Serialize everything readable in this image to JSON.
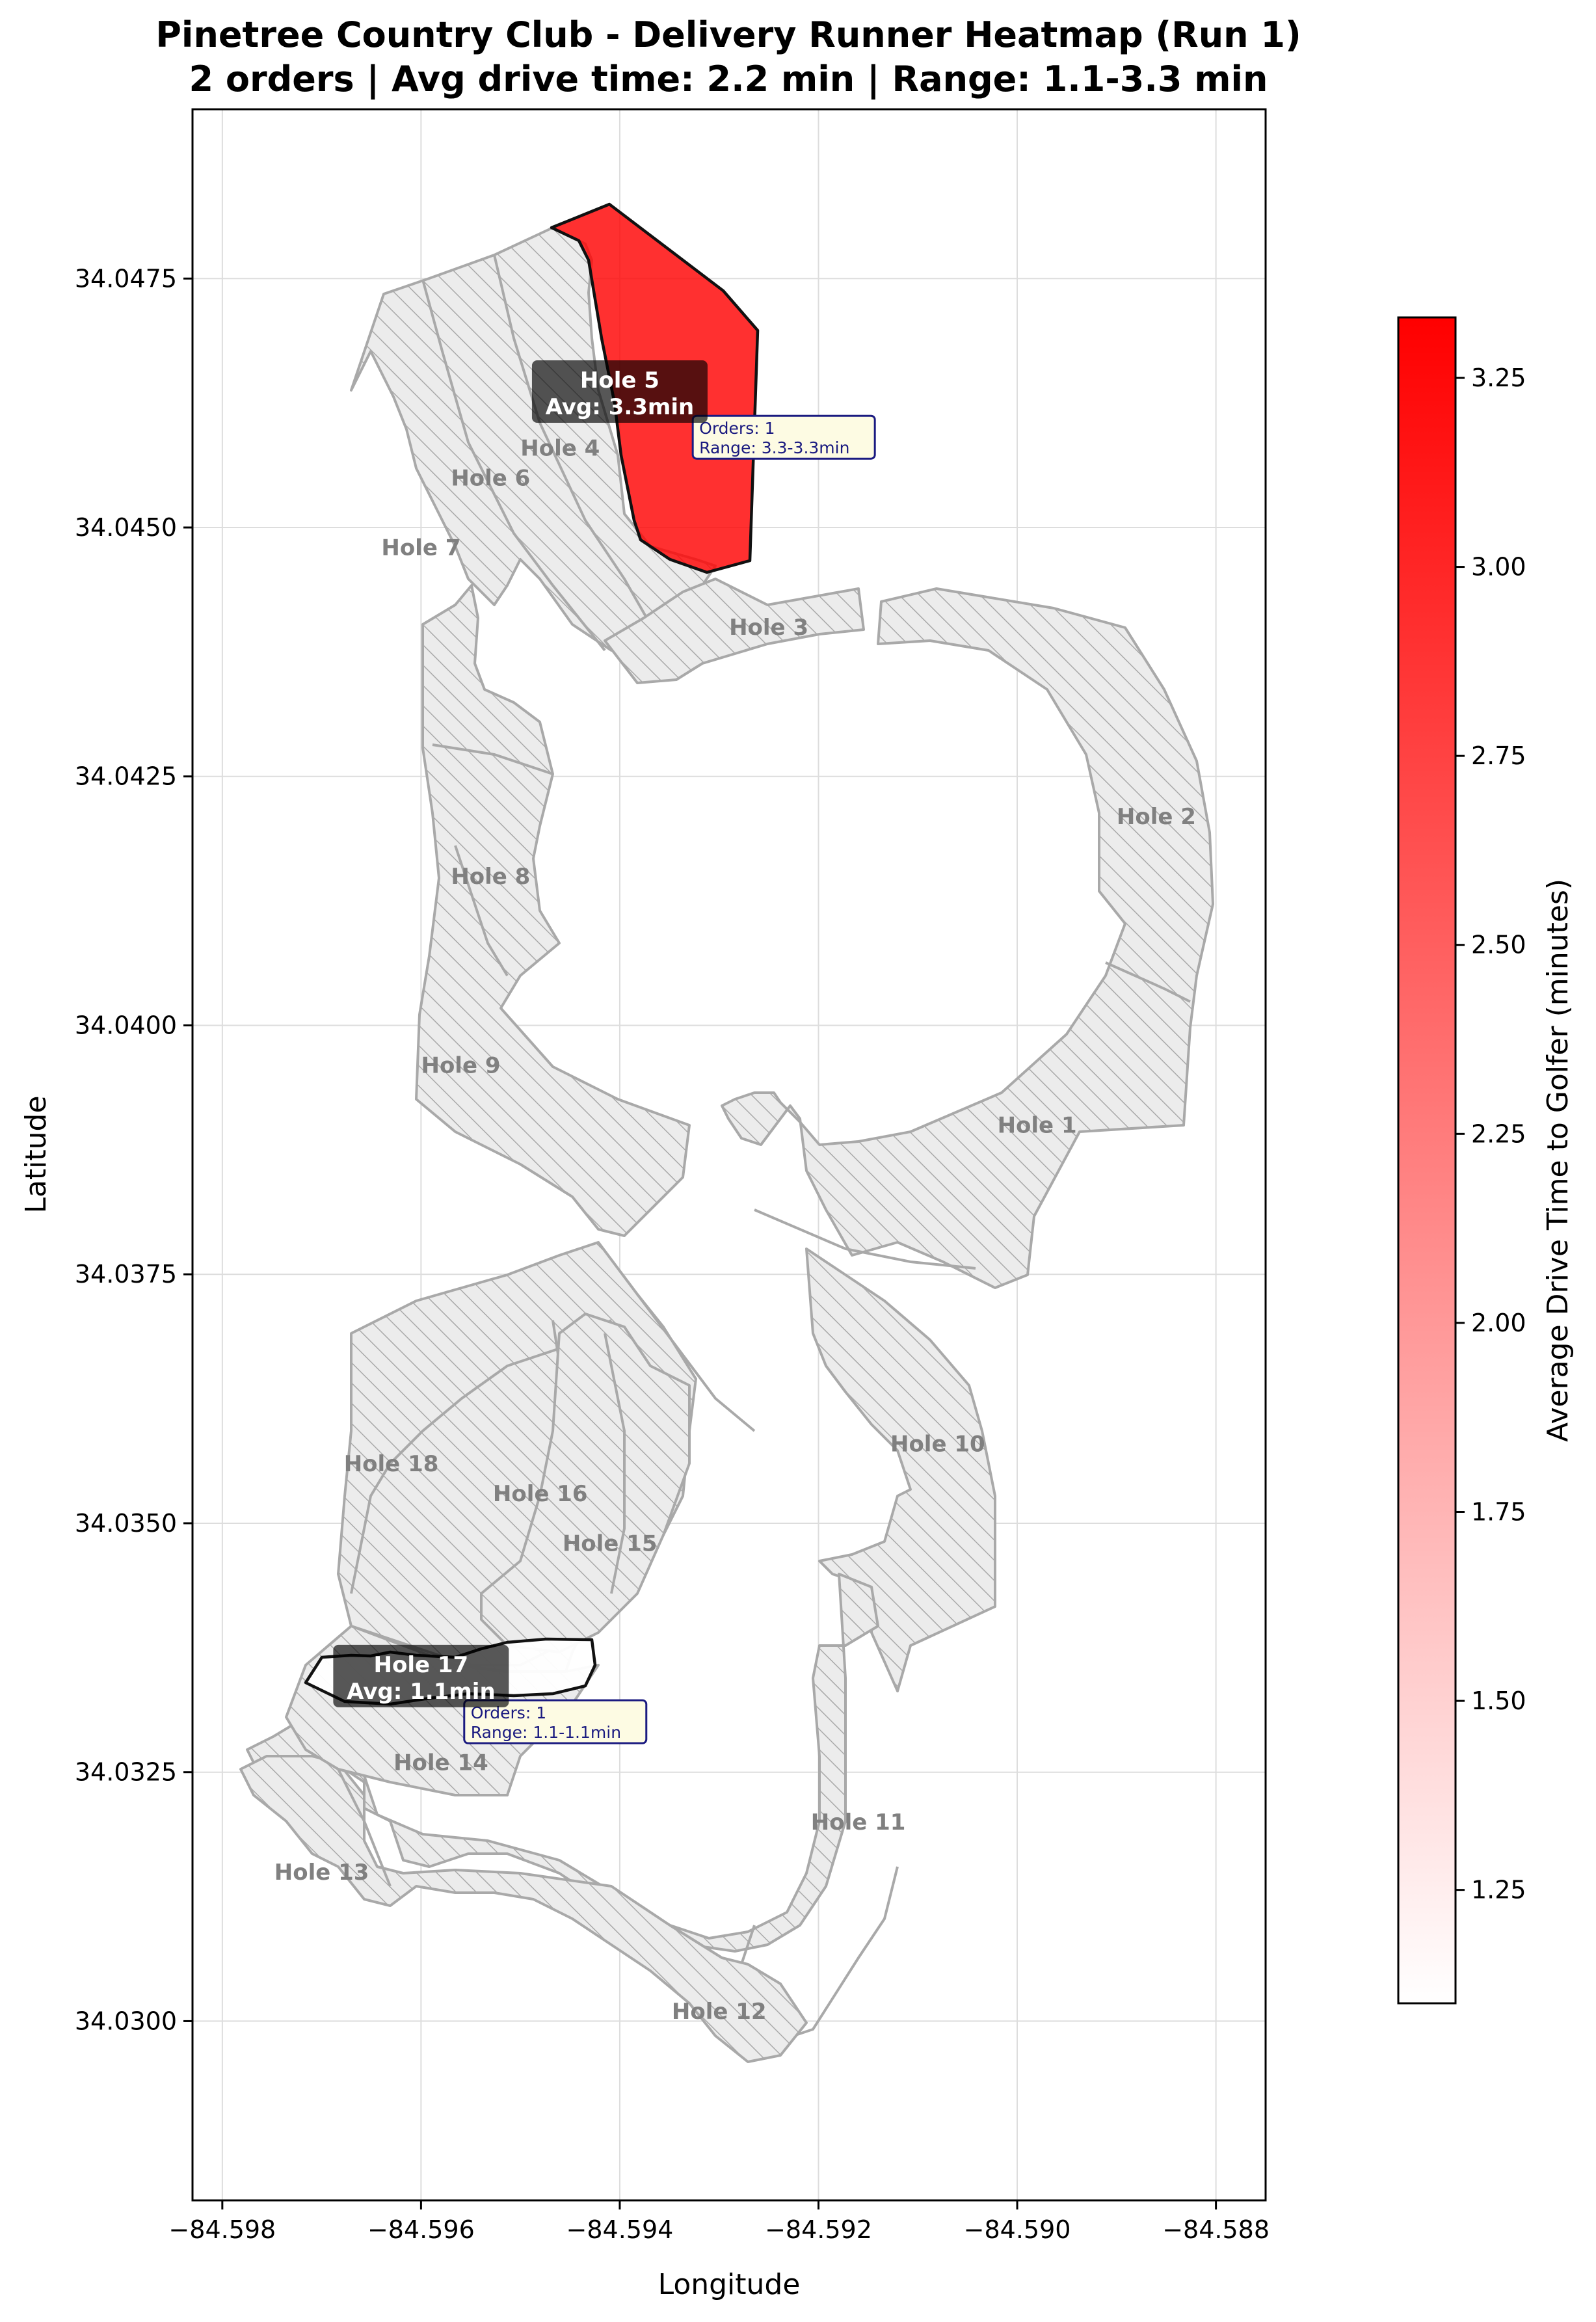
{
  "title_line1": "Pinetree Country Club - Delivery Runner Heatmap (Run 1)",
  "title_line2": "2 orders | Avg drive time: 2.2 min | Range: 1.1-3.3 min",
  "xlabel": "Longitude",
  "ylabel": "Latitude",
  "colorbar_label": "Average Drive Time to Golfer (minutes)",
  "colors": {
    "min": "#ffffff",
    "max": "#ff0000",
    "hatch": "#a9a9a9",
    "course_fill": "#ececec"
  },
  "chart_data": {
    "type": "heatmap",
    "xlim": [
      -84.5983,
      -84.5875
    ],
    "ylim": [
      34.0282,
      34.0492
    ],
    "x_ticks": [
      -84.598,
      -84.596,
      -84.594,
      -84.592,
      -84.59,
      -84.588
    ],
    "x_tick_labels": [
      "−84.598",
      "−84.596",
      "−84.594",
      "−84.592",
      "−84.590",
      "−84.588"
    ],
    "y_ticks": [
      34.03,
      34.0325,
      34.035,
      34.0375,
      34.04,
      34.0425,
      34.045,
      34.0475
    ],
    "y_tick_labels": [
      "34.0300",
      "34.0325",
      "34.0350",
      "34.0375",
      "34.0400",
      "34.0425",
      "34.0450",
      "34.0475"
    ],
    "grid": true,
    "colorbar": {
      "range": [
        1.1,
        3.33
      ],
      "ticks": [
        1.25,
        1.5,
        1.75,
        2.0,
        2.25,
        2.5,
        2.75,
        3.0,
        3.25
      ],
      "tick_labels": [
        "1.25",
        "1.50",
        "1.75",
        "2.00",
        "2.25",
        "2.50",
        "2.75",
        "3.00",
        "3.25"
      ]
    },
    "hole_labels": [
      {
        "text": "Hole 1",
        "lon": -84.5898,
        "lat": 34.039
      },
      {
        "text": "Hole 2",
        "lon": -84.5886,
        "lat": 34.0421
      },
      {
        "text": "Hole 3",
        "lon": -84.5925,
        "lat": 34.044
      },
      {
        "text": "Hole 4",
        "lon": -84.5946,
        "lat": 34.0458
      },
      {
        "text": "Hole 6",
        "lon": -84.5953,
        "lat": 34.0455
      },
      {
        "text": "Hole 7",
        "lon": -84.596,
        "lat": 34.0448
      },
      {
        "text": "Hole 8",
        "lon": -84.5953,
        "lat": 34.0415
      },
      {
        "text": "Hole 9",
        "lon": -84.5956,
        "lat": 34.0396
      },
      {
        "text": "Hole 10",
        "lon": -84.5908,
        "lat": 34.0358
      },
      {
        "text": "Hole 11",
        "lon": -84.5916,
        "lat": 34.032
      },
      {
        "text": "Hole 12",
        "lon": -84.593,
        "lat": 34.0301
      },
      {
        "text": "Hole 13",
        "lon": -84.597,
        "lat": 34.0315
      },
      {
        "text": "Hole 14",
        "lon": -84.5958,
        "lat": 34.0326
      },
      {
        "text": "Hole 15",
        "lon": -84.5941,
        "lat": 34.0348
      },
      {
        "text": "Hole 16",
        "lon": -84.5948,
        "lat": 34.0353
      },
      {
        "text": "Hole 18",
        "lon": -84.5963,
        "lat": 34.0356
      }
    ],
    "highlighted": [
      {
        "hole": "Hole 5",
        "avg_label": "Avg: 3.3min",
        "avg": 3.3,
        "orders": "Orders: 1",
        "range": "Range: 3.3-3.3min",
        "lon": -84.594,
        "lat": 34.0463,
        "info_lon": -84.5932,
        "info_lat": 34.0459
      },
      {
        "hole": "Hole 17",
        "avg_label": "Avg: 1.1min",
        "avg": 1.1,
        "orders": "Orders: 1",
        "range": "Range: 1.1-1.1min",
        "lon": -84.596,
        "lat": 34.0334,
        "info_lon": -84.5955,
        "info_lat": 34.033
      }
    ]
  }
}
